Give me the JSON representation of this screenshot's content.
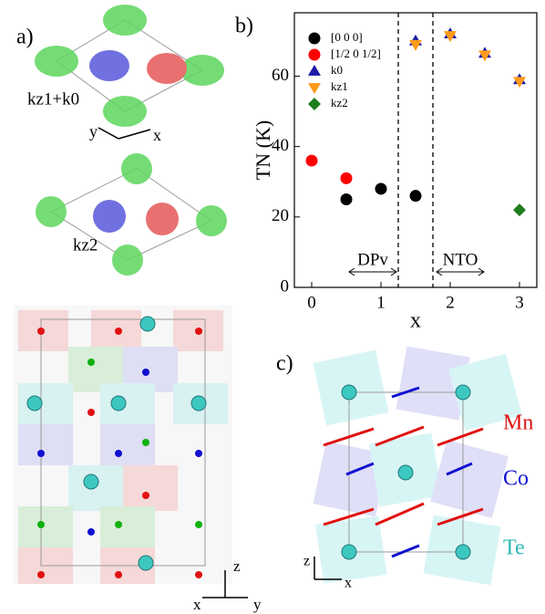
{
  "panels": {
    "a": "a)",
    "b": "b)",
    "c": "c)"
  },
  "diagram_a": {
    "label_top": "kz1+k0",
    "label_bottom": "kz2",
    "axis_y": "y",
    "axis_x": "x",
    "axis_z": "z",
    "axis_x2": "x",
    "axis_y2": "y"
  },
  "diagram_c": {
    "species": [
      "Mn",
      "Co",
      "Te"
    ],
    "axis_z": "z",
    "axis_x": "x"
  },
  "chart_data": {
    "type": "scatter",
    "ylabel": "TN (K)",
    "xlabel": "x",
    "xlim": [
      -0.25,
      3.25
    ],
    "ylim": [
      0,
      78
    ],
    "xticks": [
      0,
      1,
      2,
      3
    ],
    "yticks": [
      0,
      20,
      40,
      60
    ],
    "dividers": [
      1.25,
      1.75
    ],
    "annotations": [
      "DPv",
      "NTO"
    ],
    "legend": "upper left",
    "series": [
      {
        "name": "[0 0 0]",
        "color": "#000000",
        "marker": "circle",
        "x": [
          0.5,
          1,
          1.5
        ],
        "values": [
          25,
          28,
          26
        ]
      },
      {
        "name": "[1/2 0 1/2]",
        "color": "#ff0000",
        "marker": "circle",
        "x": [
          0,
          0.5
        ],
        "values": [
          36,
          31
        ]
      },
      {
        "name": "k0",
        "color": "#1a1aa6",
        "marker": "triangle-up",
        "x": [
          1.5,
          2,
          2.5,
          3
        ],
        "values": [
          70,
          72,
          66.5,
          59
        ]
      },
      {
        "name": "kz1",
        "color": "#ff9a1a",
        "marker": "triangle-down",
        "x": [
          1.5,
          2,
          2.5,
          3
        ],
        "values": [
          69,
          71.5,
          66,
          58.5
        ]
      },
      {
        "name": "kz2",
        "color": "#1e7d1e",
        "marker": "diamond",
        "x": [
          3
        ],
        "values": [
          22
        ]
      }
    ]
  }
}
